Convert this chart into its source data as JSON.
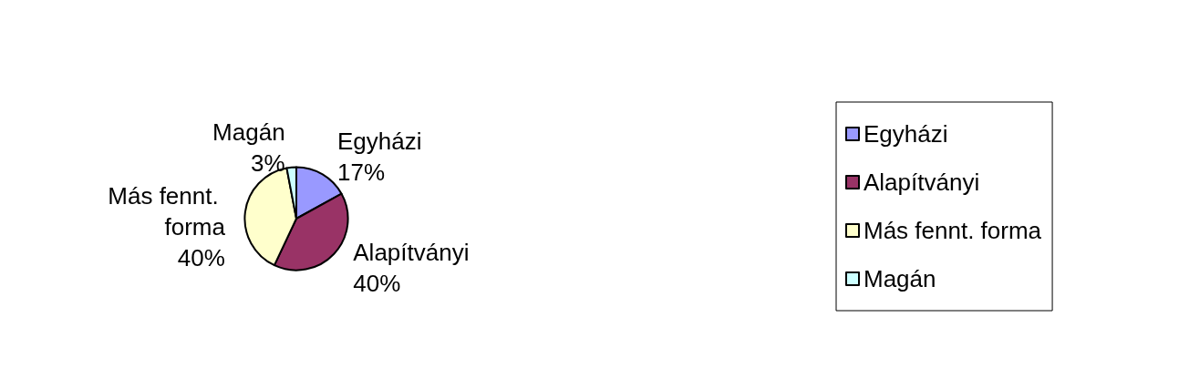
{
  "chart_data": {
    "type": "pie",
    "categories": [
      "Egyházi",
      "Alapítványi",
      "Más fennt. forma",
      "Magán"
    ],
    "values": [
      17,
      40,
      40,
      3
    ],
    "value_labels": [
      "17%",
      "40%",
      "40%",
      "3%"
    ],
    "colors": [
      "#9999ff",
      "#993366",
      "#ffffcc",
      "#ccffff"
    ],
    "legend": "right"
  }
}
